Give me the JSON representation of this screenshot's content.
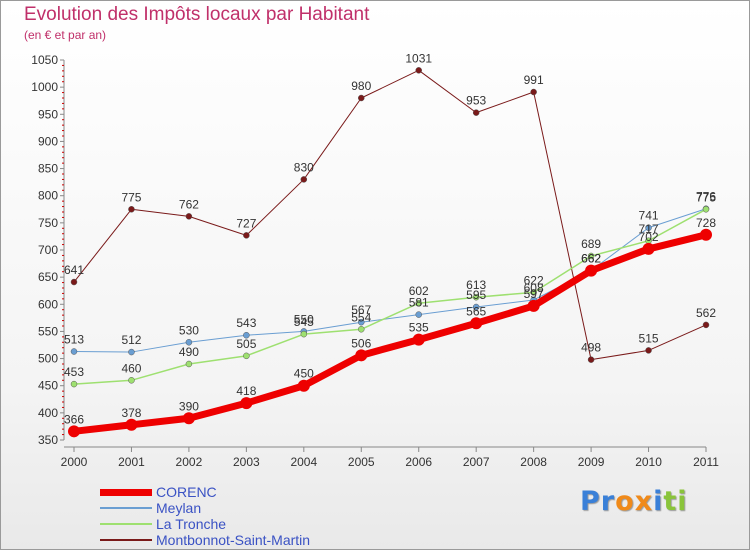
{
  "header": {
    "title": "Evolution des Impôts locaux par Habitant",
    "subtitle": "(en € et par an)"
  },
  "logo": {
    "text": "Proxiti"
  },
  "chart_data": {
    "type": "line",
    "title": "Evolution des Impôts locaux par Habitant",
    "subtitle": "(en € et par an)",
    "xlabel": "",
    "ylabel": "",
    "x": [
      "2000",
      "2001",
      "2002",
      "2003",
      "2004",
      "2005",
      "2006",
      "2007",
      "2008",
      "2009",
      "2010",
      "2011"
    ],
    "ylim": [
      350,
      1050
    ],
    "yticks": [
      350,
      400,
      450,
      500,
      550,
      600,
      650,
      700,
      750,
      800,
      850,
      900,
      950,
      1000,
      1050
    ],
    "grid": false,
    "legend_position": "bottom-left",
    "series": [
      {
        "name": "Montbonnot-Saint-Martin",
        "color": "#7a1a1a",
        "width": 1,
        "marker": 3,
        "values": [
          641,
          775,
          762,
          727,
          830,
          980,
          1031,
          953,
          991,
          498,
          515,
          562
        ]
      },
      {
        "name": "Meylan",
        "color": "#6a9ed2",
        "width": 1,
        "marker": 3,
        "values": [
          513,
          512,
          530,
          543,
          550,
          567,
          581,
          595,
          608,
          662,
          741,
          776
        ]
      },
      {
        "name": "La Tronche",
        "color": "#9ee070",
        "width": 1.5,
        "marker": 3,
        "values": [
          453,
          460,
          490,
          505,
          545,
          554,
          602,
          613,
          622,
          689,
          717,
          775
        ]
      },
      {
        "name": "CORENC",
        "color": "#ee0000",
        "width": 7,
        "marker": 6,
        "values": [
          366,
          378,
          390,
          418,
          450,
          506,
          535,
          565,
          597,
          662,
          702,
          728
        ]
      }
    ],
    "legend_order": [
      "CORENC",
      "Meylan",
      "La Tronche",
      "Montbonnot-Saint-Martin"
    ]
  }
}
